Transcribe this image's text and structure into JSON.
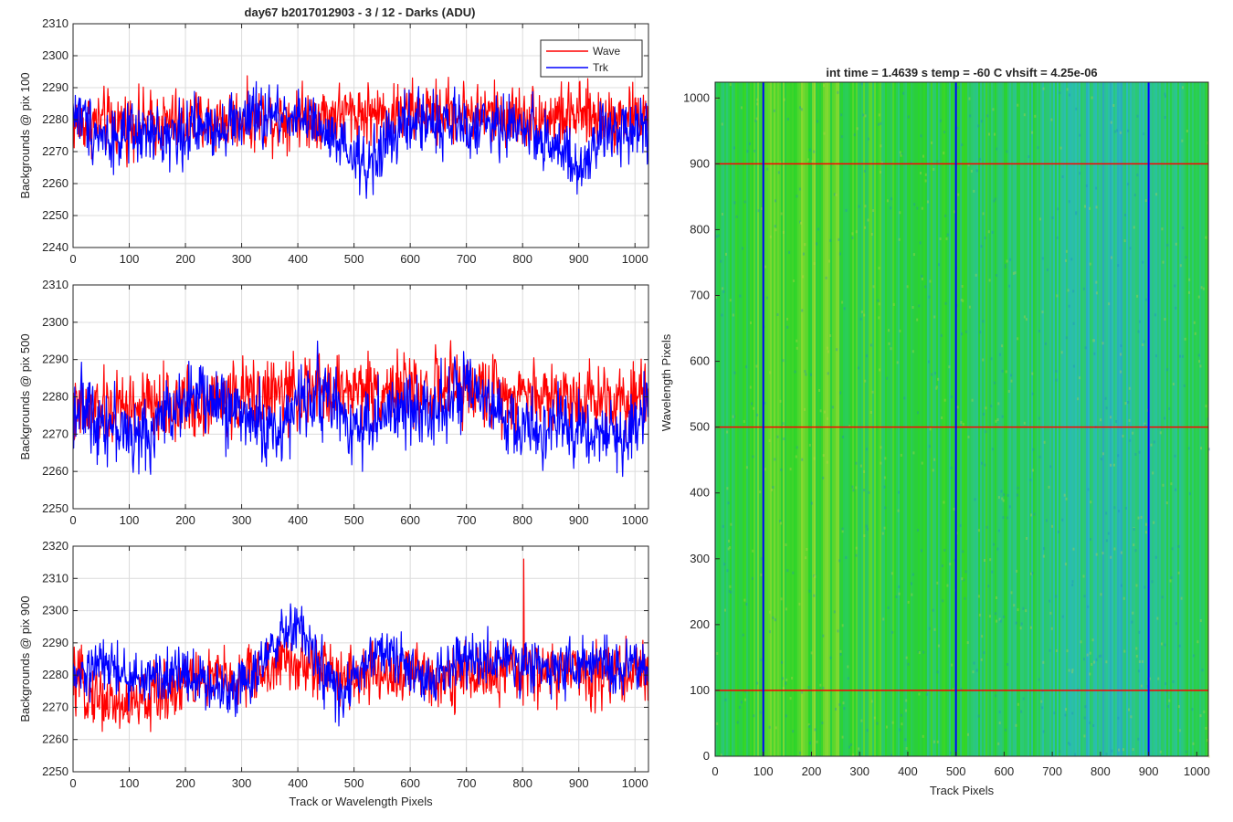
{
  "figure_title": "day67 b2017012903 - 3 / 12 - Darks (ADU)",
  "colors": {
    "wave": "#ff0000",
    "trk": "#0000ff",
    "grid": "#dcdcdc",
    "axis": "#262626"
  },
  "chart_data": [
    {
      "type": "line",
      "title": "day67 b2017012903 - 3 / 12 - Darks (ADU)",
      "xlabel": "",
      "ylabel": "Backgrounds @ pix 100",
      "xlim": [
        0,
        1024
      ],
      "ylim": [
        2240,
        2310
      ],
      "xticks": [
        0,
        100,
        200,
        300,
        400,
        500,
        600,
        700,
        800,
        900,
        1000
      ],
      "yticks": [
        2240,
        2250,
        2260,
        2270,
        2280,
        2290,
        2300,
        2310
      ],
      "grid": true,
      "legend": "top-right",
      "series": [
        {
          "name": "Wave",
          "color": "#ff0000",
          "trend_x": [
            0,
            100,
            200,
            300,
            400,
            500,
            600,
            700,
            800,
            900,
            1000,
            1024
          ],
          "trend_y": [
            2279,
            2279,
            2279,
            2280,
            2281,
            2282,
            2282,
            2282,
            2281,
            2281,
            2281,
            2282
          ],
          "noise_amplitude": 7
        },
        {
          "name": "Trk",
          "color": "#0000ff",
          "trend_x": [
            0,
            50,
            100,
            200,
            300,
            400,
            460,
            520,
            580,
            620,
            700,
            800,
            860,
            900,
            940,
            1000,
            1024
          ],
          "trend_y": [
            2283,
            2275,
            2274,
            2276,
            2280,
            2282,
            2273,
            2265,
            2277,
            2280,
            2278,
            2278,
            2272,
            2262,
            2275,
            2279,
            2277
          ],
          "noise_amplitude": 7
        }
      ]
    },
    {
      "type": "line",
      "title": "",
      "xlabel": "",
      "ylabel": "Backgrounds @ pix 500",
      "xlim": [
        0,
        1024
      ],
      "ylim": [
        2250,
        2310
      ],
      "xticks": [
        0,
        100,
        200,
        300,
        400,
        500,
        600,
        700,
        800,
        900,
        1000
      ],
      "yticks": [
        2250,
        2260,
        2270,
        2280,
        2290,
        2300,
        2310
      ],
      "grid": true,
      "series": [
        {
          "name": "Wave",
          "color": "#ff0000",
          "trend_x": [
            0,
            100,
            200,
            300,
            400,
            500,
            600,
            700,
            800,
            900,
            1000,
            1024
          ],
          "trend_y": [
            2275,
            2277,
            2278,
            2280,
            2281,
            2282,
            2282,
            2282,
            2281,
            2280,
            2280,
            2283
          ],
          "noise_amplitude": 7
        },
        {
          "name": "Trk",
          "color": "#0000ff",
          "trend_x": [
            0,
            80,
            120,
            200,
            300,
            360,
            430,
            500,
            560,
            620,
            700,
            800,
            900,
            980,
            1024
          ],
          "trend_y": [
            2278,
            2272,
            2268,
            2281,
            2276,
            2270,
            2283,
            2272,
            2275,
            2277,
            2281,
            2271,
            2272,
            2268,
            2280
          ],
          "noise_amplitude": 7
        }
      ]
    },
    {
      "type": "line",
      "title": "",
      "xlabel": "Track or Wavelength Pixels",
      "ylabel": "Backgrounds @ pix 900",
      "xlim": [
        0,
        1024
      ],
      "ylim": [
        2250,
        2320
      ],
      "xticks": [
        0,
        100,
        200,
        300,
        400,
        500,
        600,
        700,
        800,
        900,
        1000
      ],
      "yticks": [
        2250,
        2260,
        2270,
        2280,
        2290,
        2300,
        2310,
        2320
      ],
      "grid": true,
      "series": [
        {
          "name": "Wave",
          "color": "#ff0000",
          "trend_x": [
            0,
            60,
            100,
            150,
            200,
            300,
            380,
            420,
            500,
            600,
            700,
            800,
            900,
            1024
          ],
          "trend_y": [
            2278,
            2272,
            2270,
            2274,
            2278,
            2279,
            2284,
            2282,
            2280,
            2280,
            2280,
            2281,
            2281,
            2281
          ],
          "noise_amplitude": 7,
          "spike": {
            "x": 802,
            "y": 2316
          }
        },
        {
          "name": "Trk",
          "color": "#0000ff",
          "trend_x": [
            0,
            60,
            100,
            200,
            270,
            330,
            380,
            400,
            430,
            480,
            520,
            560,
            620,
            700,
            800,
            900,
            1024
          ],
          "trend_y": [
            2278,
            2284,
            2278,
            2281,
            2275,
            2282,
            2293,
            2296,
            2285,
            2272,
            2284,
            2287,
            2278,
            2285,
            2283,
            2283,
            2282
          ],
          "noise_amplitude": 6
        }
      ]
    },
    {
      "type": "heatmap",
      "title": "int time = 1.4639 s    temp = -60 C    vhsift = 4.25e-06",
      "xlabel": "Track Pixels",
      "ylabel": "Wavelength Pixels",
      "xlim": [
        0,
        1024
      ],
      "ylim": [
        0,
        1024
      ],
      "xticks": [
        0,
        100,
        200,
        300,
        400,
        500,
        600,
        700,
        800,
        900,
        1000
      ],
      "yticks": [
        0,
        100,
        200,
        300,
        400,
        500,
        600,
        700,
        800,
        900,
        1000
      ],
      "colormap": "parula",
      "vertical_markers": [
        100,
        500,
        900
      ],
      "horizontal_markers": [
        100,
        500,
        900
      ],
      "vertical_marker_color": "#0000ff",
      "horizontal_marker_color": "#ff0000"
    }
  ]
}
